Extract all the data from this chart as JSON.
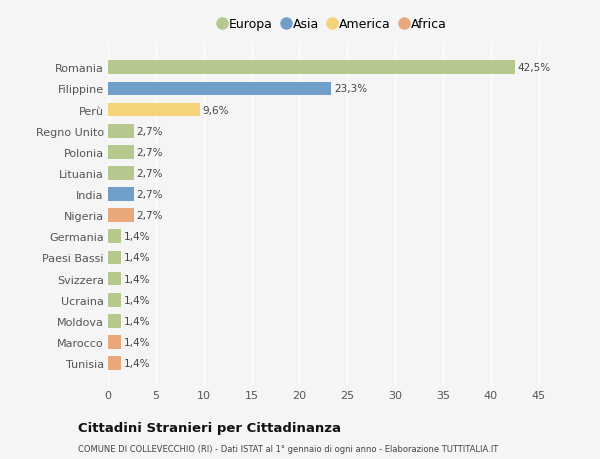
{
  "categories": [
    "Romania",
    "Filippine",
    "Perù",
    "Regno Unito",
    "Polonia",
    "Lituania",
    "India",
    "Nigeria",
    "Germania",
    "Paesi Bassi",
    "Svizzera",
    "Ucraina",
    "Moldova",
    "Marocco",
    "Tunisia"
  ],
  "values": [
    42.5,
    23.3,
    9.6,
    2.7,
    2.7,
    2.7,
    2.7,
    2.7,
    1.4,
    1.4,
    1.4,
    1.4,
    1.4,
    1.4,
    1.4
  ],
  "labels": [
    "42,5%",
    "23,3%",
    "9,6%",
    "2,7%",
    "2,7%",
    "2,7%",
    "2,7%",
    "2,7%",
    "1,4%",
    "1,4%",
    "1,4%",
    "1,4%",
    "1,4%",
    "1,4%",
    "1,4%"
  ],
  "colors": [
    "#b5c98e",
    "#6f9ec9",
    "#f5d479",
    "#b5c98e",
    "#b5c98e",
    "#b5c98e",
    "#6f9ec9",
    "#e8a87c",
    "#b5c98e",
    "#b5c98e",
    "#b5c98e",
    "#b5c98e",
    "#b5c98e",
    "#e8a87c",
    "#e8a87c"
  ],
  "legend_labels": [
    "Europa",
    "Asia",
    "America",
    "Africa"
  ],
  "legend_colors": [
    "#b5c98e",
    "#6f9ec9",
    "#f5d479",
    "#e8a87c"
  ],
  "title": "Cittadini Stranieri per Cittadinanza",
  "subtitle": "COMUNE DI COLLEVECCHIO (RI) - Dati ISTAT al 1° gennaio di ogni anno - Elaborazione TUTTITALIA.IT",
  "xlim": [
    0,
    47
  ],
  "xticks": [
    0,
    5,
    10,
    15,
    20,
    25,
    30,
    35,
    40,
    45
  ],
  "background_color": "#f5f5f5",
  "grid_color": "#ffffff",
  "bar_height": 0.65
}
